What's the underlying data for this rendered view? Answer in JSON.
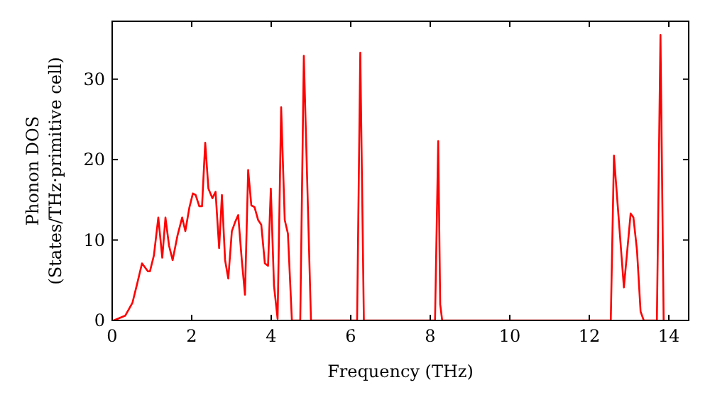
{
  "chart_data": {
    "type": "line",
    "xlabel": "Frequency (THz)",
    "ylabel": "Phonon DOS\n(States/THz·primitive cell)",
    "xlim": [
      0,
      14.5
    ],
    "ylim": [
      0,
      37.2
    ],
    "xticks": [
      0,
      2,
      4,
      6,
      8,
      10,
      12,
      14
    ],
    "yticks": [
      0,
      10,
      20,
      30
    ],
    "grid": false,
    "marker": "none",
    "line_style": "solid",
    "series": [
      {
        "color": "#ff0000",
        "x": [
          0,
          0.04,
          0.33,
          0.51,
          0.63,
          0.75,
          0.9,
          0.95,
          1.05,
          1.16,
          1.26,
          1.34,
          1.43,
          1.52,
          1.64,
          1.76,
          1.84,
          1.94,
          2.03,
          2.1,
          2.19,
          2.26,
          2.34,
          2.42,
          2.52,
          2.6,
          2.69,
          2.76,
          2.84,
          2.92,
          3.01,
          3.09,
          3.17,
          3.26,
          3.34,
          3.42,
          3.5,
          3.58,
          3.67,
          3.75,
          3.84,
          3.92,
          3.99,
          4.07,
          4.16,
          4.25,
          4.34,
          4.42,
          4.52,
          4.73,
          4.82,
          5.0,
          6.16,
          6.24,
          6.33,
          8.12,
          8.2,
          8.25,
          8.3,
          12.54,
          12.62,
          12.87,
          13.04,
          13.11,
          13.2,
          13.29,
          13.37,
          13.7,
          13.79,
          13.87
        ],
        "values": [
          0,
          0,
          0.6,
          2.2,
          4.6,
          7.1,
          6.1,
          6.1,
          8.1,
          12.8,
          7.8,
          12.8,
          9.3,
          7.5,
          10.5,
          12.8,
          11.1,
          14,
          15.8,
          15.6,
          14.2,
          14.2,
          22.1,
          16.4,
          15.2,
          16,
          9,
          15.6,
          7.5,
          5.2,
          11.1,
          12.2,
          13.1,
          7.5,
          3.2,
          18.7,
          14.3,
          14.1,
          12.5,
          11.9,
          7.1,
          6.8,
          16.4,
          4.3,
          0.2,
          26.5,
          12.5,
          10.8,
          0,
          0,
          32.9,
          0,
          0,
          33.3,
          0,
          0,
          22.3,
          2,
          0,
          0,
          20.5,
          4.1,
          13.3,
          12.8,
          8.7,
          1.1,
          0,
          0,
          35.5,
          0
        ]
      }
    ]
  }
}
